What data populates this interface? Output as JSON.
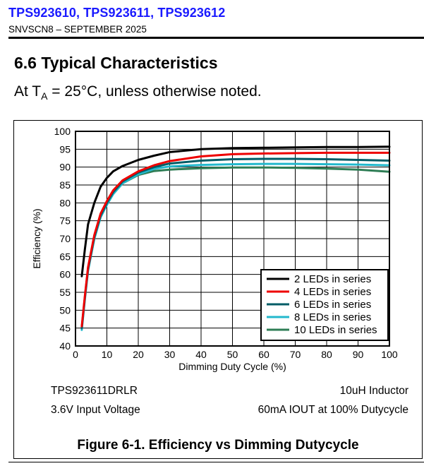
{
  "header": {
    "title": "TPS923610, TPS923611, TPS923612",
    "doc_id": "SNVSCN8 – SEPTEMBER 2025"
  },
  "section": {
    "title": "6.6 Typical Characteristics",
    "condition_prefix": "At T",
    "condition_sub": "A",
    "condition_suffix": " = 25°C, unless otherwise noted."
  },
  "figure": {
    "notes": {
      "part_number": "TPS923611DRLR",
      "inductor": "10uH Inductor",
      "input_voltage": "3.6V Input Voltage",
      "iout": "60mA IOUT at 100% Dutycycle"
    },
    "caption": "Figure 6-1. Efficiency vs Dimming Dutycycle"
  },
  "chart_data": {
    "type": "line",
    "title": "",
    "xlabel": "Dimming Duty Cycle (%)",
    "ylabel": "Efficiency (%)",
    "xlim": [
      0,
      100
    ],
    "ylim": [
      40,
      100
    ],
    "xticks": [
      0,
      10,
      20,
      30,
      40,
      50,
      60,
      70,
      80,
      90,
      100
    ],
    "yticks": [
      40,
      45,
      50,
      55,
      60,
      65,
      70,
      75,
      80,
      85,
      90,
      95,
      100
    ],
    "grid": true,
    "legend_position": "bottom-right",
    "series": [
      {
        "name": "2 LEDs in series",
        "color": "#000000",
        "points": [
          [
            2,
            59.5
          ],
          [
            3,
            67
          ],
          [
            4,
            74
          ],
          [
            6,
            80
          ],
          [
            8,
            84.5
          ],
          [
            10,
            87
          ],
          [
            12,
            88.8
          ],
          [
            15,
            90.3
          ],
          [
            20,
            92
          ],
          [
            25,
            93.2
          ],
          [
            30,
            94.2
          ],
          [
            40,
            95
          ],
          [
            50,
            95.3
          ],
          [
            60,
            95.4
          ],
          [
            70,
            95.5
          ],
          [
            80,
            95.6
          ],
          [
            90,
            95.6
          ],
          [
            100,
            95.7
          ]
        ]
      },
      {
        "name": "4 LEDs in series",
        "color": "#ee0000",
        "points": [
          [
            2,
            45.5
          ],
          [
            3,
            54
          ],
          [
            4,
            62
          ],
          [
            6,
            71
          ],
          [
            8,
            77
          ],
          [
            10,
            80.5
          ],
          [
            12,
            83.5
          ],
          [
            15,
            86.3
          ],
          [
            20,
            88.8
          ],
          [
            25,
            90.5
          ],
          [
            30,
            91.7
          ],
          [
            40,
            93
          ],
          [
            50,
            93.6
          ],
          [
            60,
            93.8
          ],
          [
            70,
            93.9
          ],
          [
            80,
            94
          ],
          [
            90,
            94
          ],
          [
            100,
            94
          ]
        ]
      },
      {
        "name": "6 LEDs in series",
        "color": "#005c66",
        "points": [
          [
            2,
            45
          ],
          [
            3,
            53.5
          ],
          [
            4,
            61.5
          ],
          [
            6,
            70.5
          ],
          [
            8,
            76.5
          ],
          [
            10,
            80
          ],
          [
            12,
            83
          ],
          [
            15,
            86
          ],
          [
            20,
            88.5
          ],
          [
            25,
            90
          ],
          [
            30,
            91
          ],
          [
            40,
            91.8
          ],
          [
            50,
            92.2
          ],
          [
            60,
            92.3
          ],
          [
            70,
            92.3
          ],
          [
            80,
            92.2
          ],
          [
            90,
            92
          ],
          [
            100,
            91.8
          ]
        ]
      },
      {
        "name": "8 LEDs in series",
        "color": "#22b8cc",
        "points": [
          [
            2,
            44.5
          ],
          [
            3,
            53
          ],
          [
            4,
            61
          ],
          [
            6,
            70
          ],
          [
            8,
            76
          ],
          [
            10,
            79.5
          ],
          [
            12,
            82.5
          ],
          [
            15,
            85.5
          ],
          [
            20,
            88
          ],
          [
            25,
            89.5
          ],
          [
            30,
            90.2
          ],
          [
            40,
            90.6
          ],
          [
            50,
            90.8
          ],
          [
            60,
            90.9
          ],
          [
            70,
            90.9
          ],
          [
            80,
            90.8
          ],
          [
            90,
            90.7
          ],
          [
            100,
            90.5
          ]
        ]
      },
      {
        "name": "10 LEDs in series",
        "color": "#2e7d55",
        "points": [
          [
            2,
            45
          ],
          [
            3,
            53.5
          ],
          [
            4,
            61.5
          ],
          [
            6,
            70
          ],
          [
            8,
            76
          ],
          [
            10,
            79.5
          ],
          [
            12,
            82.5
          ],
          [
            15,
            85.5
          ],
          [
            20,
            87.8
          ],
          [
            25,
            88.9
          ],
          [
            30,
            89.3
          ],
          [
            40,
            89.7
          ],
          [
            50,
            89.9
          ],
          [
            60,
            89.9
          ],
          [
            70,
            89.8
          ],
          [
            80,
            89.6
          ],
          [
            90,
            89.3
          ],
          [
            100,
            88.7
          ]
        ]
      }
    ]
  }
}
